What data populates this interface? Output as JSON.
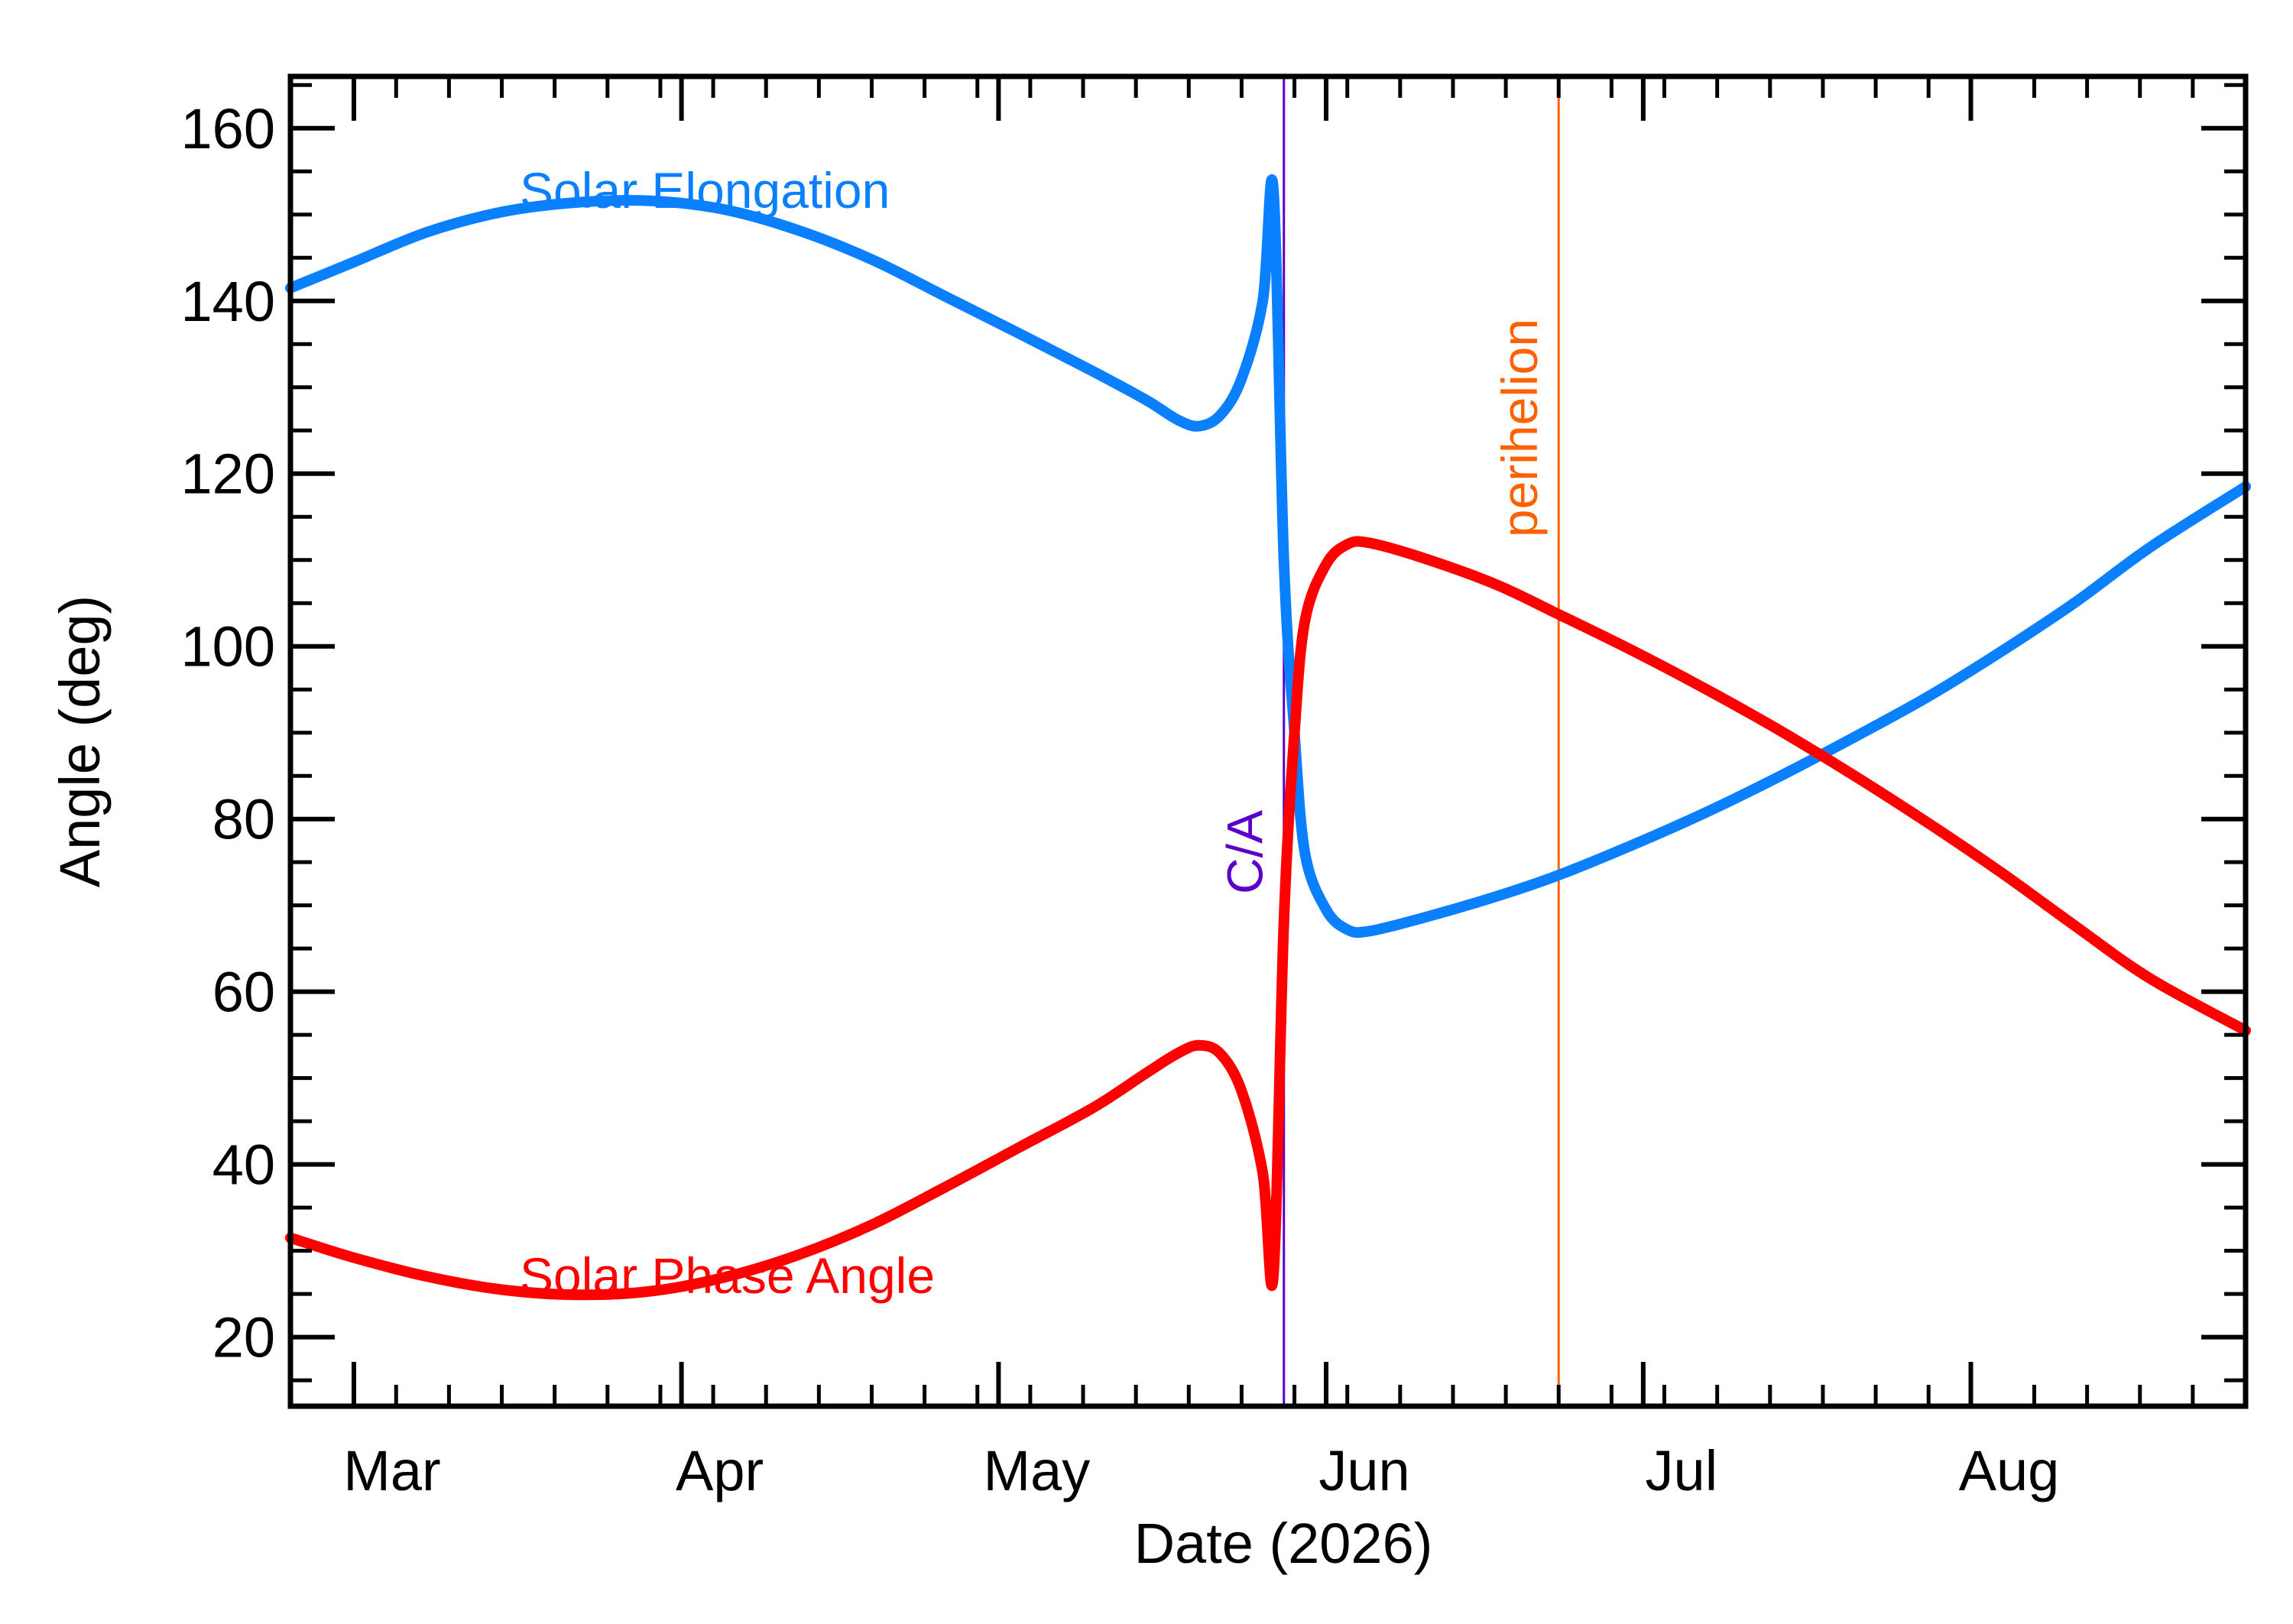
{
  "chart_data": {
    "type": "line",
    "title": "",
    "xlabel": "Date (2026)",
    "ylabel": "Angle (deg)",
    "xlim": [
      "2026-02-23",
      "2026-08-27"
    ],
    "ylim": [
      12,
      166
    ],
    "month_ticks": [
      {
        "date": "2026-03-01",
        "label": "Mar"
      },
      {
        "date": "2026-04-01",
        "label": "Apr"
      },
      {
        "date": "2026-05-01",
        "label": "May"
      },
      {
        "date": "2026-06-01",
        "label": "Jun"
      },
      {
        "date": "2026-07-01",
        "label": "Jul"
      },
      {
        "date": "2026-08-01",
        "label": "Aug"
      }
    ],
    "y_ticks": [
      20,
      40,
      60,
      80,
      100,
      120,
      140,
      160
    ],
    "y_minor_step": 5,
    "x_minor_step_days": 5,
    "grid": false,
    "events": [
      {
        "name": "C/A",
        "date": "2026-05-28",
        "color": "#5a00c8"
      },
      {
        "name": "perihelion",
        "date": "2026-06-23",
        "color": "#ff6000"
      }
    ],
    "series": [
      {
        "name": "Solar Elongation",
        "color": "#0a80ff",
        "points": [
          [
            "2026-02-23",
            141.5
          ],
          [
            "2026-03-01",
            144.5
          ],
          [
            "2026-03-08",
            148.0
          ],
          [
            "2026-03-15",
            150.3
          ],
          [
            "2026-03-22",
            151.4
          ],
          [
            "2026-03-29",
            151.6
          ],
          [
            "2026-04-05",
            150.6
          ],
          [
            "2026-04-12",
            148.2
          ],
          [
            "2026-04-19",
            144.8
          ],
          [
            "2026-04-26",
            140.5
          ],
          [
            "2026-05-03",
            136.2
          ],
          [
            "2026-05-10",
            131.8
          ],
          [
            "2026-05-15",
            128.5
          ],
          [
            "2026-05-18",
            126.2
          ],
          [
            "2026-05-20",
            125.5
          ],
          [
            "2026-05-22",
            126.8
          ],
          [
            "2026-05-24",
            131.0
          ],
          [
            "2026-05-26",
            140.0
          ],
          [
            "2026-05-27",
            153.0
          ],
          [
            "2026-05-28",
            110.0
          ],
          [
            "2026-05-29",
            90.0
          ],
          [
            "2026-05-30",
            76.0
          ],
          [
            "2026-06-01",
            69.5
          ],
          [
            "2026-06-03",
            67.2
          ],
          [
            "2026-06-05",
            67.0
          ],
          [
            "2026-06-10",
            68.5
          ],
          [
            "2026-06-17",
            71.0
          ],
          [
            "2026-06-23",
            73.5
          ],
          [
            "2026-06-30",
            77.0
          ],
          [
            "2026-07-07",
            80.8
          ],
          [
            "2026-07-14",
            85.0
          ],
          [
            "2026-07-21",
            89.5
          ],
          [
            "2026-07-28",
            94.2
          ],
          [
            "2026-08-04",
            99.5
          ],
          [
            "2026-08-11",
            105.2
          ],
          [
            "2026-08-18",
            111.5
          ],
          [
            "2026-08-27",
            118.5
          ]
        ]
      },
      {
        "name": "Solar Phase Angle",
        "color": "#ff0000",
        "points": [
          [
            "2026-02-23",
            31.5
          ],
          [
            "2026-03-01",
            29.2
          ],
          [
            "2026-03-08",
            27.0
          ],
          [
            "2026-03-15",
            25.5
          ],
          [
            "2026-03-22",
            24.9
          ],
          [
            "2026-03-29",
            25.3
          ],
          [
            "2026-04-05",
            26.9
          ],
          [
            "2026-04-12",
            29.5
          ],
          [
            "2026-04-19",
            33.0
          ],
          [
            "2026-04-26",
            37.4
          ],
          [
            "2026-05-03",
            42.0
          ],
          [
            "2026-05-10",
            46.6
          ],
          [
            "2026-05-15",
            50.6
          ],
          [
            "2026-05-18",
            52.9
          ],
          [
            "2026-05-20",
            53.8
          ],
          [
            "2026-05-22",
            52.8
          ],
          [
            "2026-05-24",
            48.5
          ],
          [
            "2026-05-26",
            39.0
          ],
          [
            "2026-05-27",
            27.0
          ],
          [
            "2026-05-28",
            68.0
          ],
          [
            "2026-05-29",
            90.0
          ],
          [
            "2026-05-30",
            103.0
          ],
          [
            "2026-06-01",
            109.5
          ],
          [
            "2026-06-03",
            111.8
          ],
          [
            "2026-06-05",
            112.0
          ],
          [
            "2026-06-10",
            110.3
          ],
          [
            "2026-06-17",
            107.2
          ],
          [
            "2026-06-23",
            103.7
          ],
          [
            "2026-06-30",
            99.5
          ],
          [
            "2026-07-07",
            95.0
          ],
          [
            "2026-07-14",
            90.2
          ],
          [
            "2026-07-21",
            85.0
          ],
          [
            "2026-07-28",
            79.5
          ],
          [
            "2026-08-04",
            73.7
          ],
          [
            "2026-08-11",
            67.5
          ],
          [
            "2026-08-18",
            61.5
          ],
          [
            "2026-08-27",
            55.5
          ]
        ]
      }
    ]
  }
}
